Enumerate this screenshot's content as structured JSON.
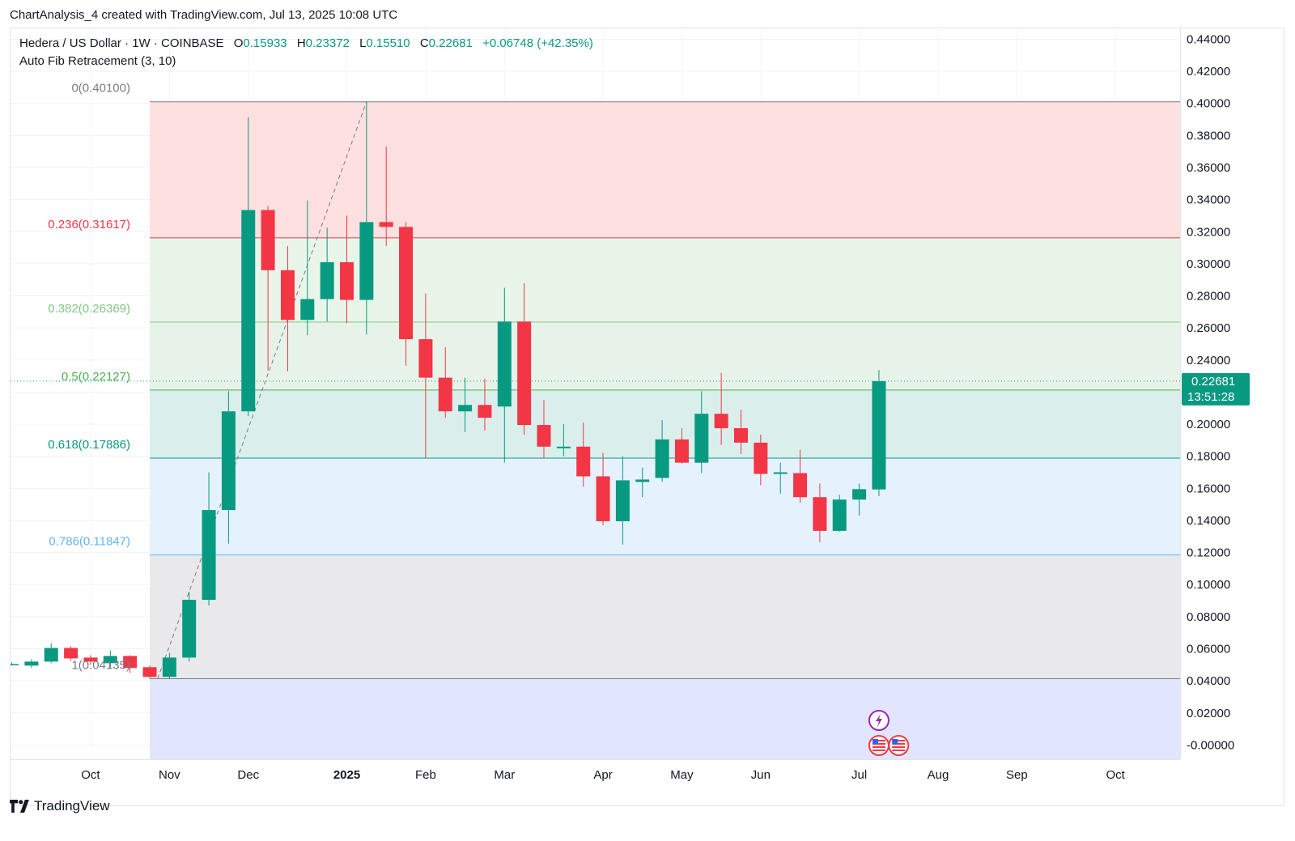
{
  "caption": "ChartAnalysis_4 created with TradingView.com, Jul 13, 2025 10:08 UTC",
  "brand": "TradingView",
  "legend": {
    "symbol": "Hedera / US Dollar · 1W · COINBASE",
    "o_label": "O",
    "o_value": "0.15933",
    "h_label": "H",
    "h_value": "0.23372",
    "l_label": "L",
    "l_value": "0.15510",
    "c_label": "C",
    "c_value": "0.22681",
    "change": "+0.06748 (+42.35%)",
    "indicator": "Auto Fib Retracement (3, 10)"
  },
  "colors": {
    "up": "#089981",
    "down": "#f23645",
    "fib_0": "#787b86",
    "fib_0236": "#f23645",
    "fib_0382": "#81c784",
    "fib_05": "#4caf50",
    "fib_0618": "#089981",
    "fib_0786": "#64b5f6",
    "fib_1": "#787b86"
  },
  "chart_data": {
    "type": "candlestick",
    "title": "Hedera / US Dollar · 1W · COINBASE",
    "ylim": [
      -0.005,
      0.445
    ],
    "y_ticks": [
      "0.44000",
      "0.42000",
      "0.40000",
      "0.38000",
      "0.36000",
      "0.34000",
      "0.32000",
      "0.30000",
      "0.28000",
      "0.26000",
      "0.24000",
      "0.22000",
      "0.20000",
      "0.18000",
      "0.16000",
      "0.14000",
      "0.12000",
      "0.10000",
      "0.08000",
      "0.06000",
      "0.04000",
      "0.02000",
      "-0.00000"
    ],
    "x_ticks": [
      {
        "label": "Oct",
        "week": -3,
        "bold": false
      },
      {
        "label": "Nov",
        "week": 1,
        "bold": false
      },
      {
        "label": "Dec",
        "week": 5,
        "bold": false
      },
      {
        "label": "2025",
        "week": 10,
        "bold": true
      },
      {
        "label": "Feb",
        "week": 14,
        "bold": false
      },
      {
        "label": "Mar",
        "week": 18,
        "bold": false
      },
      {
        "label": "Apr",
        "week": 23,
        "bold": false
      },
      {
        "label": "May",
        "week": 27,
        "bold": false
      },
      {
        "label": "Jun",
        "week": 31,
        "bold": false
      },
      {
        "label": "Jul",
        "week": 36,
        "bold": false
      },
      {
        "label": "Aug",
        "week": 40,
        "bold": false
      },
      {
        "label": "Sep",
        "week": 44,
        "bold": false
      },
      {
        "label": "Oct",
        "week": 49,
        "bold": false
      }
    ],
    "week_range": [
      -7.2,
      51.8
    ],
    "candles": [
      {
        "w": -7,
        "o": 0.0505,
        "h": 0.0515,
        "l": 0.0495,
        "c": 0.0505
      },
      {
        "w": -6,
        "o": 0.0495,
        "h": 0.0535,
        "l": 0.048,
        "c": 0.052
      },
      {
        "w": -5,
        "o": 0.052,
        "h": 0.0635,
        "l": 0.051,
        "c": 0.0605
      },
      {
        "w": -4,
        "o": 0.0605,
        "h": 0.0615,
        "l": 0.0525,
        "c": 0.054
      },
      {
        "w": -3,
        "o": 0.0545,
        "h": 0.056,
        "l": 0.05,
        "c": 0.052
      },
      {
        "w": -2,
        "o": 0.051,
        "h": 0.059,
        "l": 0.048,
        "c": 0.0555
      },
      {
        "w": -1,
        "o": 0.0555,
        "h": 0.056,
        "l": 0.045,
        "c": 0.048
      },
      {
        "w": 0,
        "o": 0.0485,
        "h": 0.0495,
        "l": 0.0415,
        "c": 0.0425
      },
      {
        "w": 1,
        "o": 0.0425,
        "h": 0.0575,
        "l": 0.0415,
        "c": 0.0545
      },
      {
        "w": 2,
        "o": 0.0545,
        "h": 0.0955,
        "l": 0.052,
        "c": 0.0905
      },
      {
        "w": 3,
        "o": 0.0905,
        "h": 0.17,
        "l": 0.087,
        "c": 0.1465
      },
      {
        "w": 4,
        "o": 0.1465,
        "h": 0.2205,
        "l": 0.1255,
        "c": 0.208
      },
      {
        "w": 5,
        "o": 0.208,
        "h": 0.3915,
        "l": 0.205,
        "c": 0.3335
      },
      {
        "w": 6,
        "o": 0.3335,
        "h": 0.336,
        "l": 0.2335,
        "c": 0.296
      },
      {
        "w": 7,
        "o": 0.296,
        "h": 0.311,
        "l": 0.233,
        "c": 0.265
      },
      {
        "w": 8,
        "o": 0.265,
        "h": 0.3395,
        "l": 0.2555,
        "c": 0.278
      },
      {
        "w": 9,
        "o": 0.278,
        "h": 0.3225,
        "l": 0.264,
        "c": 0.301
      },
      {
        "w": 10,
        "o": 0.301,
        "h": 0.33,
        "l": 0.263,
        "c": 0.2775
      },
      {
        "w": 11,
        "o": 0.2775,
        "h": 0.401,
        "l": 0.256,
        "c": 0.326
      },
      {
        "w": 12,
        "o": 0.326,
        "h": 0.373,
        "l": 0.311,
        "c": 0.323
      },
      {
        "w": 13,
        "o": 0.323,
        "h": 0.326,
        "l": 0.2365,
        "c": 0.253
      },
      {
        "w": 14,
        "o": 0.253,
        "h": 0.2815,
        "l": 0.179,
        "c": 0.229
      },
      {
        "w": 15,
        "o": 0.229,
        "h": 0.248,
        "l": 0.204,
        "c": 0.208
      },
      {
        "w": 16,
        "o": 0.208,
        "h": 0.229,
        "l": 0.195,
        "c": 0.212
      },
      {
        "w": 17,
        "o": 0.212,
        "h": 0.2285,
        "l": 0.196,
        "c": 0.204
      },
      {
        "w": 18,
        "o": 0.211,
        "h": 0.285,
        "l": 0.176,
        "c": 0.264
      },
      {
        "w": 19,
        "o": 0.264,
        "h": 0.288,
        "l": 0.1935,
        "c": 0.1995
      },
      {
        "w": 20,
        "o": 0.1995,
        "h": 0.215,
        "l": 0.1785,
        "c": 0.186
      },
      {
        "w": 21,
        "o": 0.185,
        "h": 0.2,
        "l": 0.18,
        "c": 0.186
      },
      {
        "w": 22,
        "o": 0.186,
        "h": 0.201,
        "l": 0.161,
        "c": 0.1675
      },
      {
        "w": 23,
        "o": 0.1675,
        "h": 0.182,
        "l": 0.137,
        "c": 0.1395
      },
      {
        "w": 24,
        "o": 0.1395,
        "h": 0.18,
        "l": 0.125,
        "c": 0.165
      },
      {
        "w": 25,
        "o": 0.164,
        "h": 0.173,
        "l": 0.1545,
        "c": 0.1655
      },
      {
        "w": 26,
        "o": 0.1665,
        "h": 0.2025,
        "l": 0.164,
        "c": 0.1905
      },
      {
        "w": 27,
        "o": 0.1905,
        "h": 0.1975,
        "l": 0.1755,
        "c": 0.176
      },
      {
        "w": 28,
        "o": 0.176,
        "h": 0.2205,
        "l": 0.1695,
        "c": 0.2065
      },
      {
        "w": 29,
        "o": 0.2065,
        "h": 0.232,
        "l": 0.187,
        "c": 0.1975
      },
      {
        "w": 30,
        "o": 0.1975,
        "h": 0.209,
        "l": 0.1815,
        "c": 0.1885
      },
      {
        "w": 31,
        "o": 0.1885,
        "h": 0.1935,
        "l": 0.162,
        "c": 0.169
      },
      {
        "w": 32,
        "o": 0.169,
        "h": 0.176,
        "l": 0.1565,
        "c": 0.17
      },
      {
        "w": 33,
        "o": 0.1695,
        "h": 0.184,
        "l": 0.151,
        "c": 0.1545
      },
      {
        "w": 34,
        "o": 0.1545,
        "h": 0.163,
        "l": 0.1265,
        "c": 0.1335
      },
      {
        "w": 35,
        "o": 0.1335,
        "h": 0.156,
        "l": 0.133,
        "c": 0.153
      },
      {
        "w": 36,
        "o": 0.153,
        "h": 0.163,
        "l": 0.143,
        "c": 0.1595
      },
      {
        "w": 37,
        "o": 0.15933,
        "h": 0.23372,
        "l": 0.1551,
        "c": 0.22681
      }
    ],
    "fib_levels": [
      {
        "ratio": "0",
        "price": 0.401,
        "label": "0(0.40100)",
        "color": "#787b86",
        "fill": null
      },
      {
        "ratio": "0.236",
        "price": 0.31617,
        "label": "0.236(0.31617)",
        "color": "#f23645",
        "fill": "#ffe0e0"
      },
      {
        "ratio": "0.382",
        "price": 0.26369,
        "label": "0.382(0.26369)",
        "color": "#81c784",
        "fill": "#e9f5e9"
      },
      {
        "ratio": "0.5",
        "price": 0.22127,
        "label": "0.5(0.22127)",
        "color": "#4caf50",
        "fill": "#e7f3e9"
      },
      {
        "ratio": "0.618",
        "price": 0.17886,
        "label": "0.618(0.17886)",
        "color": "#089981",
        "fill": "#daefec"
      },
      {
        "ratio": "0.786",
        "price": 0.11847,
        "label": "0.786(0.11847)",
        "color": "#64b5f6",
        "fill": "#e5f2fd"
      },
      {
        "ratio": "1",
        "price": 0.0413,
        "label": "1(0.04135)",
        "color": "#787b86",
        "fill": "#e9e9eb"
      }
    ],
    "fib_bottom_fill": "#e1e5fd",
    "fib_start_week": 0,
    "trend_line": [
      {
        "week": 0.4,
        "price": 0.0413
      },
      {
        "week": 11,
        "price": 0.401
      }
    ],
    "current_price": {
      "price": 0.22681,
      "label": "0.22681",
      "countdown": "13:51:28"
    },
    "events": [
      {
        "type": "lightning",
        "week": 37
      },
      {
        "type": "flag-us",
        "week": 37
      },
      {
        "type": "flag-us",
        "week": 38
      }
    ]
  }
}
